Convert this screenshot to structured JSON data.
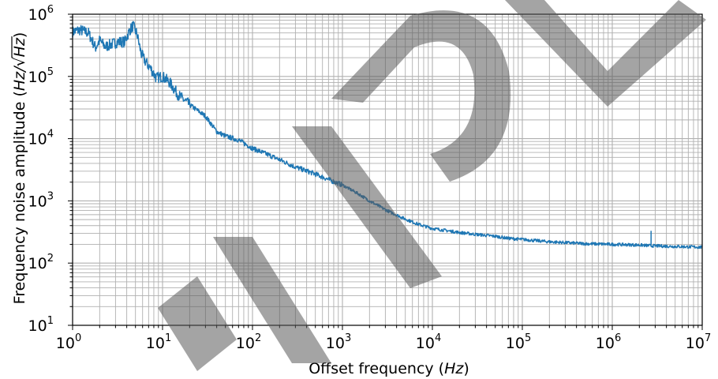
{
  "chart_data": {
    "type": "line",
    "title": "",
    "xlabel": "Offset frequency (Hz)",
    "ylabel": "Frequency noise amplitude (Hz/√Hz)",
    "xlabel_parts": {
      "text": "Offset frequency (",
      "unit": "Hz",
      "close": ")"
    },
    "ylabel_parts": {
      "text": "Frequency noise amplitude (",
      "unit": "Hz/",
      "root": "Hz",
      "close": ")"
    },
    "x_scale": "log",
    "y_scale": "log",
    "xlim": [
      1,
      10000000
    ],
    "ylim": [
      10,
      1000000
    ],
    "x_ticks": [
      {
        "base": "10",
        "exp": "0"
      },
      {
        "base": "10",
        "exp": "1"
      },
      {
        "base": "10",
        "exp": "2"
      },
      {
        "base": "10",
        "exp": "3"
      },
      {
        "base": "10",
        "exp": "4"
      },
      {
        "base": "10",
        "exp": "5"
      },
      {
        "base": "10",
        "exp": "6"
      },
      {
        "base": "10",
        "exp": "7"
      }
    ],
    "y_ticks": [
      {
        "base": "10",
        "exp": "1"
      },
      {
        "base": "10",
        "exp": "2"
      },
      {
        "base": "10",
        "exp": "3"
      },
      {
        "base": "10",
        "exp": "4"
      },
      {
        "base": "10",
        "exp": "5"
      },
      {
        "base": "10",
        "exp": "6"
      }
    ],
    "grid": true,
    "minor_grid": true,
    "series": [
      {
        "color": "#1f77b4",
        "x": [
          1,
          1.2,
          1.5,
          1.8,
          2,
          2.3,
          2.7,
          3.2,
          3.8,
          4.3,
          4.7,
          5.2,
          5.8,
          6.5,
          7.5,
          8.5,
          10,
          12,
          15,
          20,
          30,
          40,
          50,
          70,
          100,
          150,
          200,
          300,
          500,
          700,
          1000,
          1500,
          2000,
          3000,
          5000,
          7000,
          10000,
          15000,
          20000,
          30000,
          50000,
          70000,
          100000,
          200000,
          500000,
          1000000,
          2000000,
          2700000,
          5000000,
          10000000
        ],
        "y": [
          520000,
          560000,
          500000,
          290000,
          380000,
          300000,
          330000,
          360000,
          360000,
          550000,
          650000,
          480000,
          230000,
          170000,
          130000,
          95000,
          100000,
          80000,
          50000,
          35000,
          23000,
          13000,
          11000,
          9500,
          7000,
          5500,
          4600,
          3500,
          2700,
          2200,
          1800,
          1300,
          1000,
          720,
          510,
          420,
          360,
          330,
          310,
          290,
          270,
          250,
          240,
          220,
          205,
          200,
          195,
          190,
          185,
          180
        ]
      }
    ],
    "spike": {
      "x": 2700000,
      "y": 330,
      "base_y": 195
    }
  }
}
